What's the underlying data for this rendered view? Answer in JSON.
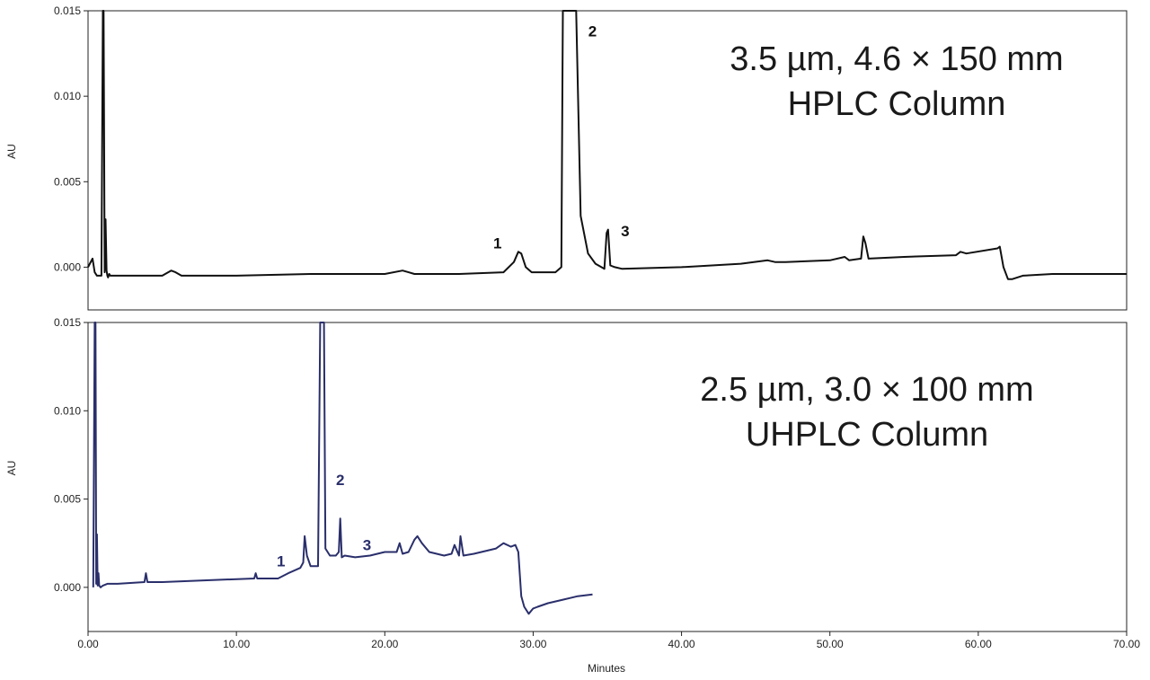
{
  "chart_data": [
    {
      "type": "line",
      "annotation": [
        "3.5 µm, 4.6 × 150 mm",
        "HPLC Column"
      ],
      "ylabel": "AU",
      "xlim": [
        0,
        70
      ],
      "ylim": [
        -0.0025,
        0.015
      ],
      "y_ticks": [
        "0.000",
        "0.005",
        "0.010",
        "0.015"
      ],
      "color": "#111111",
      "peak_labels": [
        {
          "label": "1",
          "x": 27.6,
          "y": 0.0011
        },
        {
          "label": "2",
          "x": 34.0,
          "y": 0.0135
        },
        {
          "label": "3",
          "x": 36.2,
          "y": 0.0018
        }
      ],
      "series": [
        {
          "x": [
            0,
            0.3,
            0.45,
            0.6,
            0.9,
            1.0,
            1.05,
            1.12,
            1.18,
            1.25,
            1.3,
            1.35,
            1.42,
            1.5,
            1.7,
            2.5,
            5.0,
            5.6,
            5.9,
            6.3,
            10,
            15,
            20,
            21.2,
            21.6,
            22.0,
            25,
            28.0,
            28.7,
            29.0,
            29.2,
            29.5,
            29.9,
            30.5,
            31.5,
            31.9,
            32.0,
            32.2,
            32.5,
            32.9,
            33.2,
            33.7,
            34.2,
            34.8,
            34.95,
            35.05,
            35.2,
            35.5,
            36.0,
            40,
            44,
            45.8,
            46.3,
            47,
            50,
            51.0,
            51.3,
            52.1,
            52.25,
            52.4,
            52.6,
            55,
            58.5,
            58.8,
            59.2,
            61.3,
            61.45,
            61.7,
            62.0,
            62.3,
            63,
            65,
            70
          ],
          "y": [
            0.0,
            0.0005,
            -0.0003,
            -0.0005,
            -0.0005,
            0.015,
            0.015,
            -0.0003,
            0.0028,
            -0.0002,
            -0.0005,
            -0.0006,
            -0.0004,
            -0.0005,
            -0.0005,
            -0.0005,
            -0.0005,
            -0.0002,
            -0.0003,
            -0.0005,
            -0.0005,
            -0.0004,
            -0.0004,
            -0.0002,
            -0.0003,
            -0.0004,
            -0.0004,
            -0.0003,
            0.0003,
            0.0009,
            0.0008,
            0.0,
            -0.0003,
            -0.0003,
            -0.0003,
            0.0,
            0.015,
            0.015,
            0.015,
            0.015,
            0.003,
            0.0008,
            0.0002,
            -0.0001,
            0.002,
            0.0022,
            0.0001,
            -0.0,
            -0.0001,
            0.0,
            0.0002,
            0.0004,
            0.0003,
            0.0003,
            0.0004,
            0.0006,
            0.0004,
            0.0005,
            0.0018,
            0.0014,
            0.0005,
            0.0006,
            0.0007,
            0.0009,
            0.0008,
            0.0011,
            0.0012,
            0.0,
            -0.0007,
            -0.0007,
            -0.0005,
            -0.0004,
            -0.0004
          ]
        }
      ]
    },
    {
      "type": "line",
      "annotation": [
        "2.5 µm, 3.0 × 100 mm",
        "UHPLC Column"
      ],
      "ylabel": "AU",
      "xlabel": "Minutes",
      "xlim": [
        0,
        70
      ],
      "ylim": [
        -0.0025,
        0.015
      ],
      "y_ticks": [
        "0.000",
        "0.005",
        "0.010",
        "0.015"
      ],
      "x_ticks": [
        "0.00",
        "10.00",
        "20.00",
        "30.00",
        "40.00",
        "50.00",
        "60.00",
        "70.00"
      ],
      "color": "#2a2f6b",
      "peak_labels": [
        {
          "label": "1",
          "x": 13.0,
          "y": 0.0012
        },
        {
          "label": "2",
          "x": 17.0,
          "y": 0.0058
        },
        {
          "label": "3",
          "x": 18.8,
          "y": 0.0021
        }
      ],
      "series": [
        {
          "x": [
            0.35,
            0.45,
            0.5,
            0.55,
            0.6,
            0.65,
            0.7,
            0.75,
            0.85,
            1.0,
            1.3,
            2,
            3.8,
            3.9,
            4.0,
            5,
            8,
            11.2,
            11.3,
            11.4,
            12.8,
            13.5,
            14.3,
            14.5,
            14.6,
            14.75,
            15.0,
            15.5,
            15.65,
            15.7,
            15.8,
            15.9,
            16.0,
            16.3,
            16.7,
            16.9,
            17.0,
            17.1,
            17.3,
            18,
            19,
            20,
            20.8,
            21.0,
            21.2,
            21.6,
            22.0,
            22.2,
            22.5,
            23.0,
            24,
            24.5,
            24.7,
            25.0,
            25.1,
            25.3,
            26,
            27.5,
            28.0,
            28.5,
            28.8,
            29.0,
            29.2,
            29.4,
            29.7,
            30.0,
            30.3,
            31,
            32,
            33,
            34.0
          ],
          "y": [
            0.0,
            0.015,
            0.015,
            0.0002,
            0.003,
            0.0001,
            0.0008,
            0.0001,
            0.0,
            0.0001,
            0.0002,
            0.0002,
            0.0003,
            0.0008,
            0.0003,
            0.0003,
            0.0004,
            0.0005,
            0.0008,
            0.0005,
            0.0005,
            0.0008,
            0.0011,
            0.0014,
            0.0029,
            0.0018,
            0.0012,
            0.0012,
            0.015,
            0.015,
            0.015,
            0.015,
            0.0022,
            0.0018,
            0.0018,
            0.002,
            0.0039,
            0.0017,
            0.0018,
            0.0017,
            0.0018,
            0.002,
            0.002,
            0.0025,
            0.0019,
            0.002,
            0.0027,
            0.0029,
            0.0025,
            0.002,
            0.0018,
            0.0019,
            0.0024,
            0.0018,
            0.0029,
            0.0018,
            0.0019,
            0.0022,
            0.0025,
            0.0023,
            0.0024,
            0.002,
            -0.0005,
            -0.0011,
            -0.0015,
            -0.0012,
            -0.0011,
            -0.0009,
            -0.0007,
            -0.0005,
            -0.0004
          ]
        }
      ]
    }
  ]
}
